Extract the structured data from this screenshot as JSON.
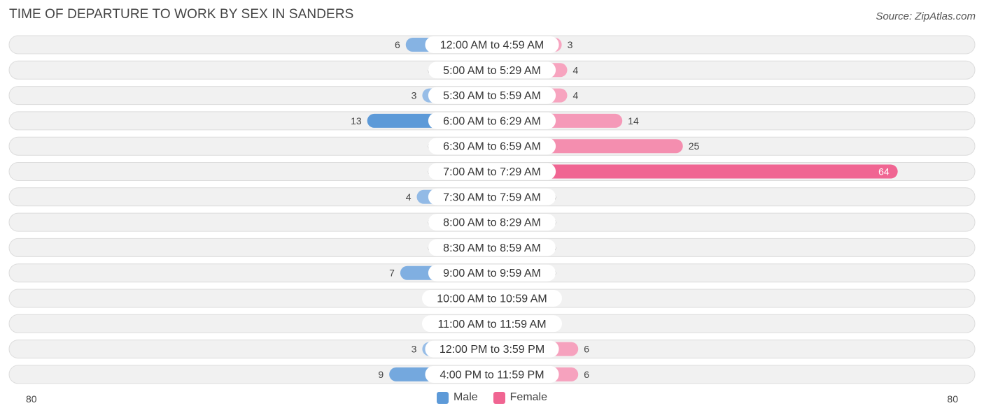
{
  "title": "TIME OF DEPARTURE TO WORK BY SEX IN SANDERS",
  "source": "Source: ZipAtlas.com",
  "legend": {
    "male": "Male",
    "female": "Female"
  },
  "axis": {
    "left_label": "80",
    "right_label": "80"
  },
  "colors": {
    "male_light": "#a9c8ec",
    "male_dark": "#5d9ad8",
    "female_light": "#f7a8c2",
    "female_dark": "#f06592",
    "row_bg": "#f1f1f1",
    "row_border": "#dcdcdc"
  },
  "chart_data": {
    "type": "bar",
    "orientation": "horizontal-diverging",
    "categories": [
      "12:00 AM to 4:59 AM",
      "5:00 AM to 5:29 AM",
      "5:30 AM to 5:59 AM",
      "6:00 AM to 6:29 AM",
      "6:30 AM to 6:59 AM",
      "7:00 AM to 7:29 AM",
      "7:30 AM to 7:59 AM",
      "8:00 AM to 8:29 AM",
      "8:30 AM to 8:59 AM",
      "9:00 AM to 9:59 AM",
      "10:00 AM to 10:59 AM",
      "11:00 AM to 11:59 AM",
      "12:00 PM to 3:59 PM",
      "4:00 PM to 11:59 PM"
    ],
    "series": [
      {
        "name": "Male",
        "values": [
          6,
          0,
          3,
          13,
          0,
          0,
          4,
          0,
          0,
          7,
          0,
          0,
          3,
          9
        ]
      },
      {
        "name": "Female",
        "values": [
          3,
          4,
          4,
          14,
          25,
          64,
          0,
          0,
          0,
          0,
          0,
          0,
          6,
          6
        ]
      }
    ],
    "xlim": [
      -80,
      80
    ],
    "grid": false,
    "legend_position": "bottom-center"
  }
}
